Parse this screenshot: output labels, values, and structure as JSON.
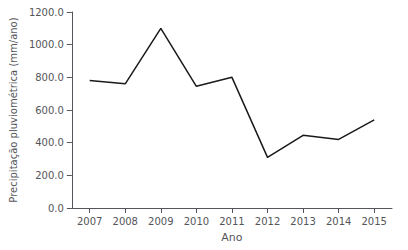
{
  "chart_data": {
    "type": "line",
    "x": [
      2007,
      2008,
      2009,
      2010,
      2011,
      2012,
      2013,
      2014,
      2015
    ],
    "values": [
      780,
      760,
      1100,
      745,
      800,
      310,
      445,
      420,
      540
    ],
    "xlabel": "Ano",
    "ylabel": "Precipitação pluviométrica (mm/ano)",
    "xlim": [
      2006.5,
      2015.5
    ],
    "xticks": [
      2007,
      2008,
      2009,
      2010,
      2011,
      2012,
      2013,
      2014,
      2015
    ],
    "ylim": [
      0,
      1200
    ],
    "yticks": [
      {
        "value": 0,
        "label": "0.0"
      },
      {
        "value": 200,
        "label": "200.0"
      },
      {
        "value": 400,
        "label": "400.0"
      },
      {
        "value": 600,
        "label": "600.0"
      },
      {
        "value": 800,
        "label": "800.0"
      },
      {
        "value": 1000,
        "label": "1000.0"
      },
      {
        "value": 1200,
        "label": "1200.0"
      }
    ],
    "color": "#1a1a1a",
    "grid": false
  }
}
